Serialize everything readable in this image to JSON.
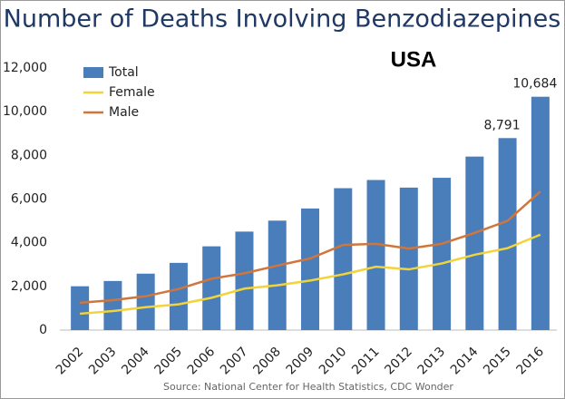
{
  "chart_data": {
    "type": "bar_line",
    "title": "Number of Deaths Involving Benzodiazepines",
    "annotation": "USA",
    "source": "Source: National Center for Health Statistics, CDC Wonder",
    "categories": [
      "2002",
      "2003",
      "2004",
      "2005",
      "2006",
      "2007",
      "2008",
      "2009",
      "2010",
      "2011",
      "2012",
      "2013",
      "2014",
      "2015",
      "2016"
    ],
    "series": [
      {
        "name": "Total",
        "type": "bar",
        "color": "#4a7ebb",
        "values": [
          2007,
          2248,
          2584,
          3078,
          3835,
          4510,
          5012,
          5567,
          6497,
          6872,
          6524,
          6973,
          7945,
          8791,
          10684
        ],
        "value_labels": [
          null,
          null,
          null,
          null,
          null,
          null,
          null,
          null,
          null,
          null,
          null,
          null,
          null,
          "8,791",
          "10,684"
        ]
      },
      {
        "name": "Female",
        "type": "line",
        "color": "#f2d43a",
        "values": [
          750,
          870,
          1050,
          1180,
          1480,
          1900,
          2050,
          2270,
          2550,
          2900,
          2780,
          3050,
          3450,
          3750,
          4370
        ]
      },
      {
        "name": "Male",
        "type": "line",
        "color": "#d0763a",
        "values": [
          1250,
          1370,
          1550,
          1880,
          2350,
          2600,
          2950,
          3280,
          3900,
          3950,
          3730,
          3950,
          4450,
          5000,
          6350
        ]
      }
    ],
    "ylim": [
      0,
      12000
    ],
    "yticks": [
      0,
      {
        "value": 2000,
        "label": "2,000"
      },
      {
        "value": 4000,
        "label": "4,000"
      },
      {
        "value": 6000,
        "label": "6,000"
      },
      {
        "value": 8000,
        "label": "8,000"
      },
      {
        "value": 10000,
        "label": "10,000"
      },
      {
        "value": 12000,
        "label": "12,000"
      }
    ],
    "grid": false,
    "legend": "top-left"
  }
}
